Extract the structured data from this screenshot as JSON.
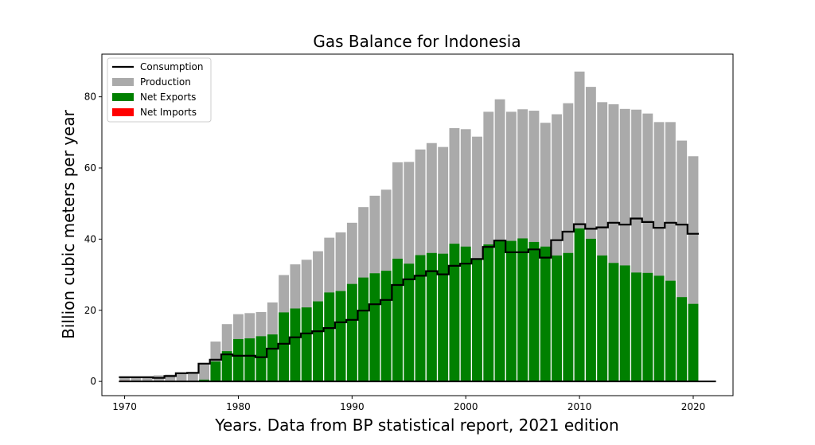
{
  "chart_data": {
    "type": "bar",
    "title": "Gas Balance for Indonesia",
    "xlabel": "Years. Data from BP statistical report, 2021 edition",
    "ylabel": "Billion cubic meters per year",
    "xlim": [
      1968.0,
      2023.5
    ],
    "ylim": [
      -4,
      92
    ],
    "xticks": [
      1970,
      1980,
      1990,
      2000,
      2010,
      2020
    ],
    "yticks": [
      0,
      20,
      40,
      60,
      80
    ],
    "legend_position": "upper-left",
    "legend": [
      {
        "label": "Consumption",
        "kind": "line",
        "color": "#000000"
      },
      {
        "label": "Production",
        "kind": "patch",
        "color": "#aaaaaa"
      },
      {
        "label": "Net Exports",
        "kind": "patch",
        "color": "#008000"
      },
      {
        "label": "Net Imports",
        "kind": "patch",
        "color": "#ff0000"
      }
    ],
    "years": [
      1970,
      1971,
      1972,
      1973,
      1974,
      1975,
      1976,
      1977,
      1978,
      1979,
      1980,
      1981,
      1982,
      1983,
      1984,
      1985,
      1986,
      1987,
      1988,
      1989,
      1990,
      1991,
      1992,
      1993,
      1994,
      1995,
      1996,
      1997,
      1998,
      1999,
      2000,
      2001,
      2002,
      2003,
      2004,
      2005,
      2006,
      2007,
      2008,
      2009,
      2010,
      2011,
      2012,
      2013,
      2014,
      2015,
      2016,
      2017,
      2018,
      2019,
      2020
    ],
    "series": [
      {
        "name": "Production",
        "color": "#aaaaaa",
        "values": [
          1.0,
          1.1,
          1.2,
          1.7,
          1.9,
          2.3,
          2.4,
          5.2,
          11.2,
          16.1,
          18.9,
          19.2,
          19.5,
          22.2,
          29.9,
          32.9,
          34.2,
          36.6,
          40.4,
          41.9,
          44.6,
          49.0,
          52.2,
          53.9,
          61.6,
          61.7,
          65.2,
          67.0,
          65.9,
          71.2,
          70.9,
          68.8,
          75.8,
          79.3,
          75.8,
          76.5,
          76.1,
          72.7,
          75.1,
          78.2,
          87.1,
          82.8,
          78.5,
          77.9,
          76.6,
          76.4,
          75.3,
          72.9,
          72.9,
          67.7,
          63.3
        ]
      },
      {
        "name": "Consumption",
        "color": "#000000",
        "values": [
          1.2,
          1.2,
          1.2,
          1.0,
          1.5,
          2.3,
          2.4,
          5.0,
          6.1,
          7.6,
          7.2,
          7.2,
          6.8,
          9.2,
          10.6,
          12.4,
          13.5,
          14.1,
          15.0,
          16.6,
          17.3,
          19.9,
          21.7,
          22.9,
          27.1,
          28.7,
          29.7,
          31.0,
          30.1,
          32.5,
          33.1,
          34.4,
          37.8,
          39.6,
          36.3,
          36.3,
          37.1,
          34.8,
          39.7,
          42.1,
          44.2,
          42.9,
          43.3,
          44.6,
          44.1,
          45.8,
          44.8,
          43.2,
          44.6,
          44.1,
          41.5
        ]
      },
      {
        "name": "Net Exports",
        "color": "#008000",
        "values": [
          0.0,
          0.0,
          0.0,
          0.0,
          0.0,
          0.0,
          0.0,
          0.5,
          5.6,
          8.5,
          11.9,
          12.1,
          12.7,
          13.2,
          19.4,
          20.5,
          20.8,
          22.5,
          25.0,
          25.4,
          27.4,
          29.2,
          30.4,
          31.1,
          34.5,
          33.1,
          35.5,
          36.1,
          35.9,
          38.7,
          37.9,
          34.5,
          38.5,
          39.7,
          39.5,
          40.2,
          39.2,
          37.9,
          35.4,
          36.1,
          43.0,
          40.1,
          35.4,
          33.3,
          32.6,
          30.6,
          30.5,
          29.7,
          28.3,
          23.7,
          21.8
        ]
      },
      {
        "name": "Net Imports",
        "color": "#ff0000",
        "values": [
          0.2,
          0.1,
          0.0,
          0.0,
          0.0,
          0.0,
          0.0,
          0.0,
          0.0,
          0.0,
          0.0,
          0.0,
          0.0,
          0.0,
          0.0,
          0.0,
          0.0,
          0.0,
          0.0,
          0.0,
          0.0,
          0.0,
          0.0,
          0.0,
          0.0,
          0.0,
          0.0,
          0.0,
          0.0,
          0.0,
          0.0,
          0.0,
          0.0,
          0.0,
          0.0,
          0.0,
          0.0,
          0.0,
          0.0,
          0.0,
          0.0,
          0.0,
          0.0,
          0.0,
          0.0,
          0.0,
          0.0,
          0.0,
          0.0,
          0.0,
          0.0
        ]
      }
    ],
    "baseline_end_year": 2022
  }
}
